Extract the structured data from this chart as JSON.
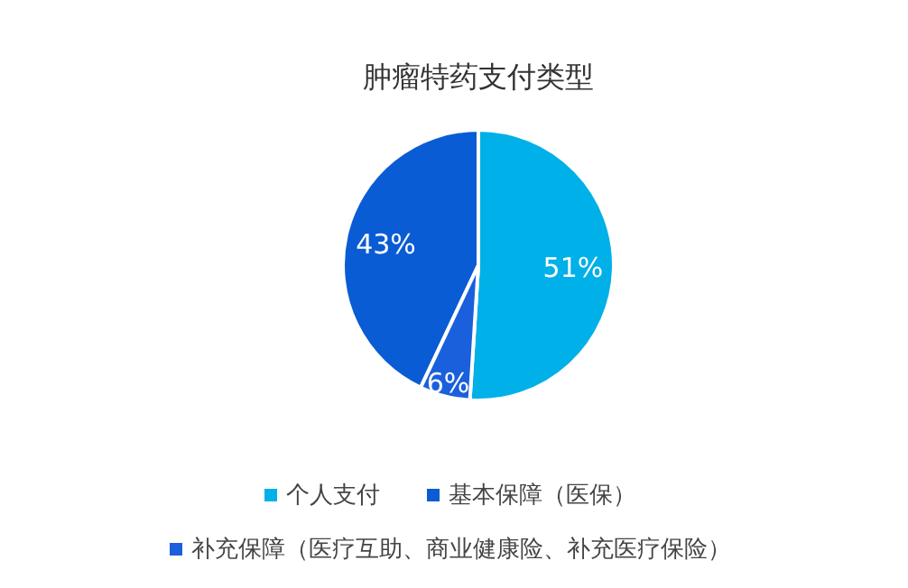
{
  "chart_data": {
    "type": "pie",
    "title": "肿瘤特药支付类型",
    "categories": [
      "个人支付",
      "基本保障（医保）",
      "补充保障（医疗互助、商业健康险、补充医疗保险）"
    ],
    "values": [
      51,
      43,
      6
    ],
    "colors": [
      "#00b0e8",
      "#0a5cd4",
      "#1a5fdc"
    ],
    "legend": "bottom",
    "value_labels": [
      "51%",
      "43%",
      "6%"
    ]
  }
}
